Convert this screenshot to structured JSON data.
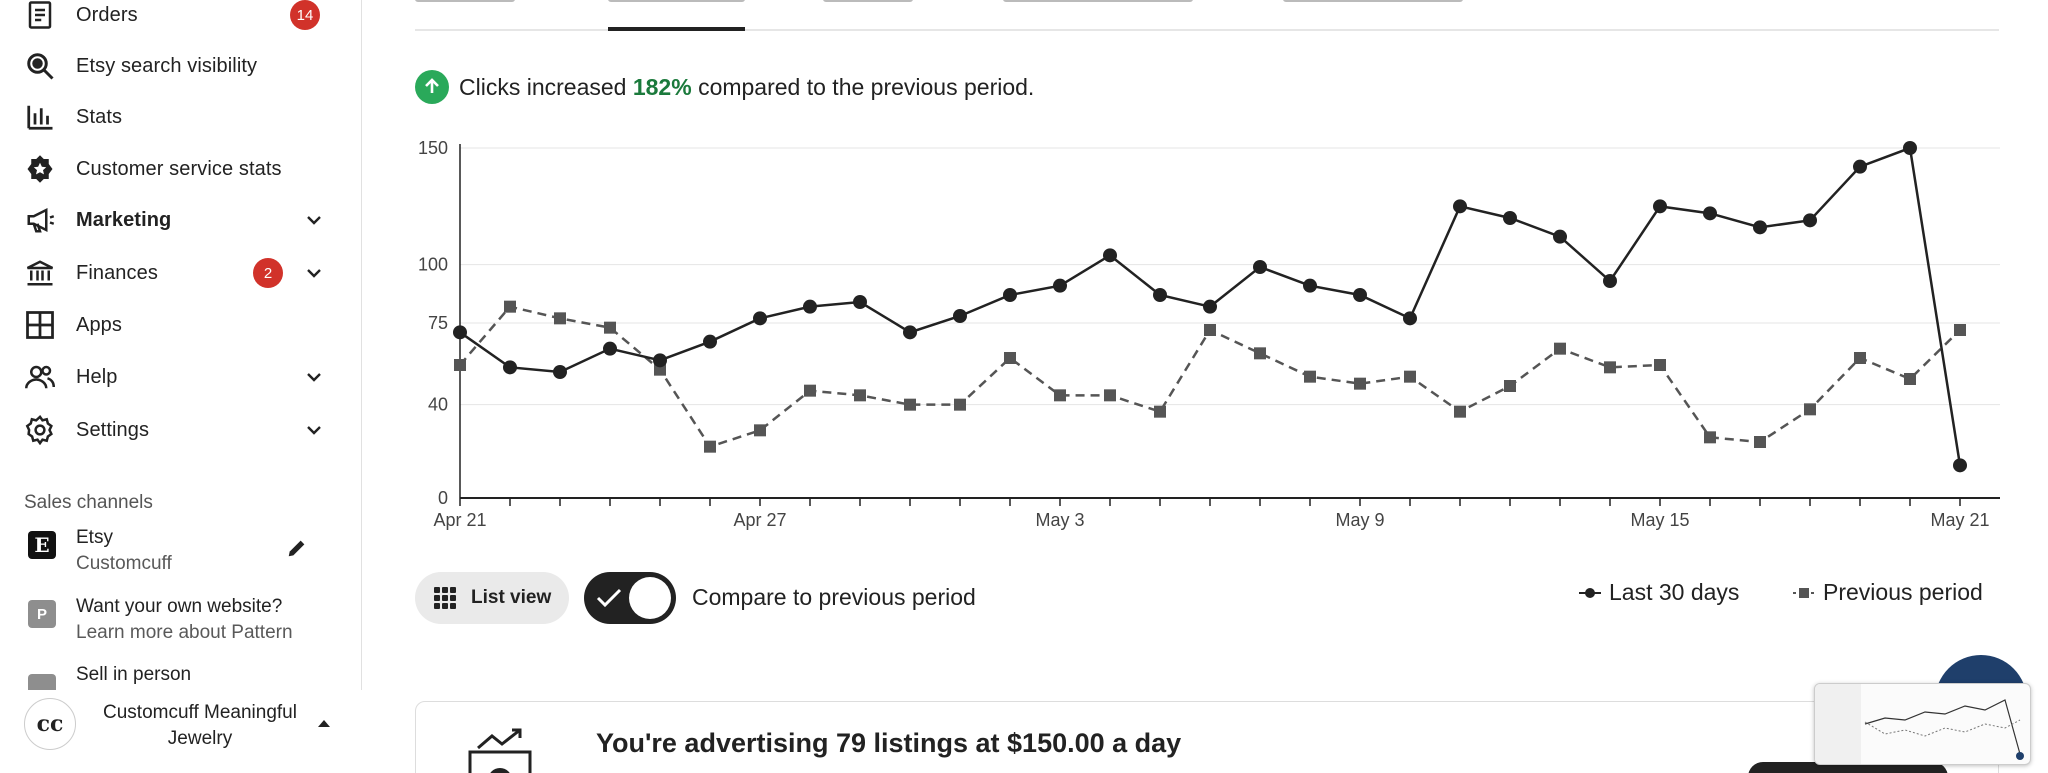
{
  "sidebar": {
    "items": [
      {
        "label": "Orders",
        "icon": "clipboard-list-icon",
        "badge": "14"
      },
      {
        "label": "Etsy search visibility",
        "icon": "search-icon"
      },
      {
        "label": "Stats",
        "icon": "bar-chart-icon"
      },
      {
        "label": "Customer service stats",
        "icon": "star-badge-icon"
      },
      {
        "label": "Marketing",
        "icon": "megaphone-icon",
        "expandable": true
      },
      {
        "label": "Finances",
        "icon": "bank-icon",
        "badge": "2",
        "expandable": true
      },
      {
        "label": "Apps",
        "icon": "grid-icon"
      },
      {
        "label": "Help",
        "icon": "people-icon",
        "expandable": true
      },
      {
        "label": "Settings",
        "icon": "gear-icon",
        "expandable": true
      }
    ],
    "sales_channels_title": "Sales channels",
    "channels": [
      {
        "title": "Etsy",
        "subtitle": "Customcuff",
        "icon": "etsy-e-icon"
      },
      {
        "title": "Want your own website?",
        "subtitle": "Learn more about Pattern",
        "icon": "pattern-p-icon"
      },
      {
        "title": "Sell in person",
        "icon": "card-reader-icon"
      }
    ],
    "shop": {
      "avatar": "cc",
      "name": "Customcuff Meaningful Jewelry"
    }
  },
  "summary": {
    "prefix": "Clicks increased",
    "percent": "182%",
    "suffix": "compared to the previous period."
  },
  "controls": {
    "list_view_label": "List view",
    "compare_label": "Compare to previous period",
    "compare_enabled": true
  },
  "legend": {
    "current": "Last 30 days",
    "previous": "Previous period"
  },
  "ad": {
    "text": "You're advertising 79 listings at $150.00 a day"
  },
  "colors": {
    "badge": "#d1322a",
    "positive": "#1b7a3c",
    "up_circle": "#2aa95a",
    "line": "#222222",
    "dashed": "#555555"
  },
  "chart_data": {
    "type": "line",
    "x_ticks": [
      "Apr 21",
      "Apr 27",
      "May 3",
      "May 9",
      "May 15",
      "May 21"
    ],
    "y_ticks": [
      0,
      40,
      75,
      100,
      150
    ],
    "x": [
      "Apr 21",
      "Apr 22",
      "Apr 23",
      "Apr 24",
      "Apr 25",
      "Apr 26",
      "Apr 27",
      "Apr 28",
      "Apr 29",
      "Apr 30",
      "May 1",
      "May 2",
      "May 3",
      "May 4",
      "May 5",
      "May 6",
      "May 7",
      "May 8",
      "May 9",
      "May 10",
      "May 11",
      "May 12",
      "May 13",
      "May 14",
      "May 15",
      "May 16",
      "May 17",
      "May 18",
      "May 19",
      "May 20",
      "May 21"
    ],
    "series": [
      {
        "name": "Last 30 days",
        "style": "solid-circle",
        "values": [
          71,
          56,
          54,
          64,
          59,
          67,
          77,
          82,
          84,
          71,
          78,
          87,
          91,
          104,
          87,
          82,
          99,
          91,
          87,
          77,
          125,
          120,
          112,
          93,
          125,
          122,
          116,
          119,
          142,
          150,
          14
        ]
      },
      {
        "name": "Previous period",
        "style": "dashed-square",
        "values": [
          57,
          82,
          77,
          73,
          55,
          22,
          29,
          46,
          44,
          40,
          40,
          60,
          44,
          44,
          37,
          72,
          62,
          52,
          49,
          52,
          37,
          48,
          64,
          56,
          57,
          26,
          24,
          38,
          60,
          51,
          72
        ]
      }
    ]
  }
}
